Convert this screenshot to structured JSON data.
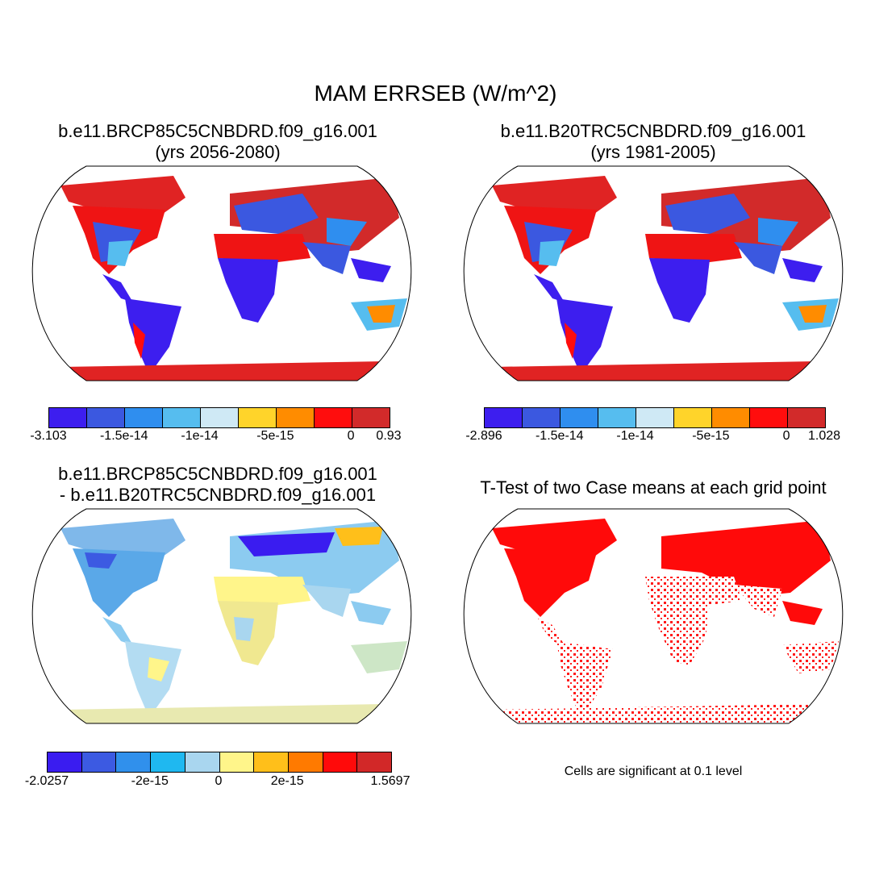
{
  "main_title": "MAM ERRSEB (W/m^2)",
  "panels": {
    "top_left": {
      "title_line1": "b.e11.BRCP85C5CNBDRD.f09_g16.001",
      "title_line2": "(yrs 2056-2080)",
      "colorbar": {
        "colors": [
          "#3d1eef",
          "#3b58e0",
          "#2f8eef",
          "#56bdef",
          "#cfe9f5",
          "#ffd42a",
          "#ff8c00",
          "#ff0d0d",
          "#d22a2a"
        ],
        "labels": [
          "-3.103",
          "-1.5e-14",
          "-1e-14",
          "-5e-15",
          "0",
          "0.93"
        ]
      }
    },
    "top_right": {
      "title_line1": "b.e11.B20TRC5CNBDRD.f09_g16.001",
      "title_line2": "(yrs 1981-2005)",
      "colorbar": {
        "colors": [
          "#3d1eef",
          "#3b58e0",
          "#2f8eef",
          "#56bdef",
          "#cfe9f5",
          "#ffd42a",
          "#ff8c00",
          "#ff0d0d",
          "#d22a2a"
        ],
        "labels": [
          "-2.896",
          "-1.5e-14",
          "-1e-14",
          "-5e-15",
          "0",
          "1.028"
        ]
      }
    },
    "bottom_left": {
      "title_line1": "b.e11.BRCP85C5CNBDRD.f09_g16.001",
      "title_line2": "- b.e11.B20TRC5CNBDRD.f09_g16.001",
      "colorbar": {
        "colors": [
          "#3a1cf0",
          "#3c5ae2",
          "#3090ec",
          "#1fb8f0",
          "#a9d6ef",
          "#fff58a",
          "#ffbf1a",
          "#ff7a00",
          "#ff0a0a",
          "#d22828"
        ],
        "labels": [
          "-2.0257",
          "-2e-15",
          "0",
          "2e-15",
          "1.5697"
        ]
      }
    },
    "bottom_right": {
      "title_line1": "T-Test of two Case means at each grid point",
      "note": "Cells are significant at 0.1 level"
    }
  }
}
